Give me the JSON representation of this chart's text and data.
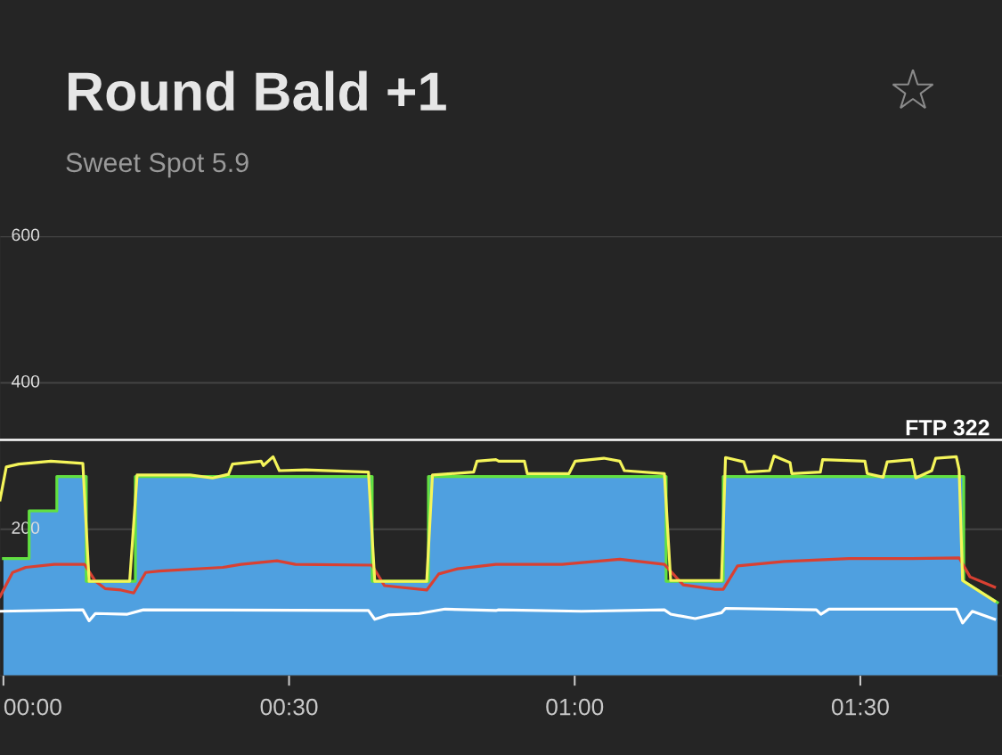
{
  "chart_data": {
    "type": "line",
    "title": "Round Bald +1",
    "subtitle": "Sweet Spot 5.9",
    "xlim": [
      -0.006,
      1.748
    ],
    "xticks": [
      {
        "value": 0,
        "label": "00:00"
      },
      {
        "value": 0.5,
        "label": "00:30"
      },
      {
        "value": 1.0,
        "label": "01:00"
      },
      {
        "value": 1.5,
        "label": "01:30"
      }
    ],
    "ylim": [
      0,
      600
    ],
    "yticks": [
      200,
      400,
      600
    ],
    "grid": "y",
    "ref_lines": [
      {
        "axis": "y",
        "value": 322,
        "label": "FTP 322",
        "color": "#ffffff"
      }
    ],
    "series": [
      {
        "type": "area",
        "color": "#4fa0e0",
        "x": [
          0,
          0.045,
          0.045,
          0.0935,
          0.0935,
          0.145,
          0.145,
          0.231,
          0.231,
          0.6455,
          0.6455,
          0.744,
          0.744,
          1.16,
          1.16,
          1.26,
          1.26,
          1.681,
          1.681,
          1.74
        ],
        "values": [
          160,
          160,
          225,
          225,
          272,
          272,
          129,
          129,
          272,
          272,
          129,
          129,
          272,
          272,
          129,
          129,
          272,
          272,
          129,
          100
        ]
      },
      {
        "type": "line",
        "color": "#62e040",
        "x": [
          0,
          0.045,
          0.045,
          0.0935,
          0.0935,
          0.145,
          0.145,
          0.231,
          0.231,
          0.6455,
          0.6455,
          0.744,
          0.744,
          1.16,
          1.16,
          1.26,
          1.26,
          1.681,
          1.681,
          1.74
        ],
        "values": [
          160,
          160,
          225,
          225,
          272,
          272,
          129,
          129,
          272,
          272,
          129,
          129,
          272,
          272,
          129,
          129,
          272,
          272,
          129,
          100
        ]
      },
      {
        "type": "line",
        "color": "#d94032",
        "x": [
          -0.006,
          0.016,
          0.039,
          0.089,
          0.142,
          0.161,
          0.178,
          0.206,
          0.228,
          0.249,
          0.273,
          0.384,
          0.416,
          0.479,
          0.511,
          0.645,
          0.667,
          0.741,
          0.762,
          0.795,
          0.862,
          0.867,
          0.978,
          1.079,
          1.157,
          1.19,
          1.246,
          1.26,
          1.285,
          1.367,
          1.48,
          1.59,
          1.673,
          1.692,
          1.735
        ],
        "values": [
          108,
          141,
          148,
          152,
          152,
          129,
          119,
          117,
          113,
          141,
          143,
          148,
          152,
          157,
          152,
          151,
          123,
          117,
          139,
          146,
          152,
          152,
          152,
          159,
          152,
          124,
          118,
          118,
          150,
          156,
          160,
          160,
          161,
          135,
          121
        ]
      },
      {
        "type": "line",
        "color": "#ffffff",
        "x": [
          -0.006,
          0.139,
          0.15,
          0.161,
          0.217,
          0.245,
          0.639,
          0.65,
          0.674,
          0.728,
          0.773,
          0.862,
          0.867,
          1.012,
          1.157,
          1.168,
          1.211,
          1.257,
          1.264,
          1.423,
          1.431,
          1.445,
          1.668,
          1.679,
          1.696,
          1.735
        ],
        "values": [
          88,
          90,
          75,
          85,
          84,
          90,
          89,
          77,
          83,
          85,
          91,
          89,
          90,
          88,
          90,
          84,
          78,
          86,
          92,
          90,
          84,
          91,
          91,
          72,
          88,
          77
        ]
      },
      {
        "type": "line",
        "color": "#f5f55a",
        "x": [
          -0.006,
          0.005,
          0.027,
          0.083,
          0.139,
          0.15,
          0.221,
          0.234,
          0.327,
          0.366,
          0.394,
          0.401,
          0.451,
          0.455,
          0.472,
          0.483,
          0.529,
          0.639,
          0.65,
          0.741,
          0.751,
          0.823,
          0.829,
          0.862,
          0.867,
          0.912,
          0.917,
          0.99,
          1.001,
          1.051,
          1.079,
          1.087,
          1.157,
          1.168,
          1.257,
          1.264,
          1.296,
          1.302,
          1.341,
          1.349,
          1.377,
          1.38,
          1.43,
          1.434,
          1.508,
          1.512,
          1.54,
          1.547,
          1.59,
          1.597,
          1.625,
          1.632,
          1.668,
          1.673,
          1.679,
          1.735
        ],
        "values": [
          240,
          285,
          289,
          293,
          290,
          129,
          129,
          274,
          274,
          270,
          275,
          289,
          293,
          287,
          299,
          280,
          281,
          278,
          129,
          129,
          274,
          278,
          293,
          295,
          293,
          293,
          276,
          276,
          293,
          297,
          293,
          280,
          276,
          130,
          130,
          298,
          292,
          278,
          280,
          300,
          291,
          276,
          278,
          295,
          293,
          276,
          271,
          292,
          295,
          270,
          280,
          297,
          299,
          281,
          130,
          102
        ]
      }
    ]
  }
}
